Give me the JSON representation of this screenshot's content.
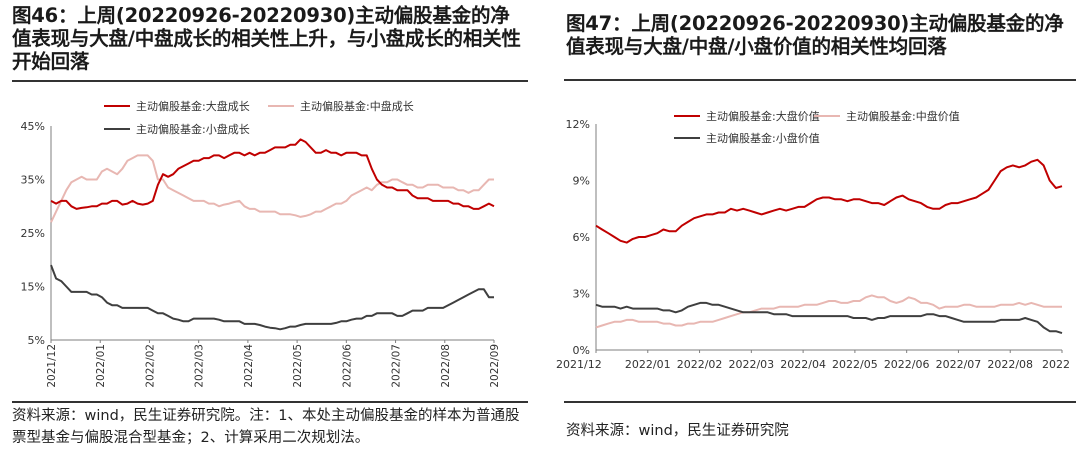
{
  "chart_data": [
    {
      "type": "line",
      "title": "图46：上周(20220926-20220930)主动偏股基金的净值表现与大盘/中盘成长的相关性上升，与小盘成长的相关性开始回落",
      "yticks": [
        "45%",
        "35%",
        "25%",
        "15%",
        "5%"
      ],
      "ylim": [
        5,
        45
      ],
      "xticks": [
        "2021/12",
        "2022/01",
        "2022/02",
        "2022/03",
        "2022/04",
        "2022/05",
        "2022/06",
        "2022/07",
        "2022/08",
        "2022/09"
      ],
      "series": [
        {
          "name": "主动偏股基金:大盘成长",
          "color": "#c00000",
          "values": [
            31,
            30.5,
            31,
            31,
            30,
            29.5,
            29.7,
            29.8,
            30,
            30,
            30.5,
            30.5,
            31,
            31,
            30.3,
            30.5,
            31,
            30.5,
            30.3,
            30.5,
            31,
            34,
            36,
            35.5,
            36,
            37,
            37.5,
            38,
            38.5,
            38.5,
            39,
            39,
            39.5,
            39.5,
            39,
            39.5,
            40,
            40,
            39.5,
            40,
            39.5,
            40,
            40,
            40.5,
            41,
            41,
            41,
            41.5,
            41.5,
            42.5,
            42,
            41,
            40,
            40,
            40.5,
            40,
            40,
            39.5,
            40,
            40,
            40,
            39.5,
            39.5,
            37,
            35,
            34,
            33.5,
            33.5,
            33,
            33,
            33,
            32,
            31.5,
            31.5,
            31.5,
            31,
            31,
            31,
            31,
            30.5,
            30.5,
            30,
            30,
            29.5,
            29.5,
            30,
            30.5,
            30
          ]
        },
        {
          "name": "主动偏股基金:中盘成长",
          "color": "#e8b7b2",
          "values": [
            27,
            29,
            31,
            33,
            34.5,
            35,
            35.5,
            35,
            35,
            35,
            36.5,
            37,
            36.5,
            36,
            37,
            38.5,
            39,
            39.5,
            39.5,
            39.5,
            38.5,
            35,
            35,
            33.5,
            33,
            32.5,
            32,
            31.5,
            31,
            31,
            31,
            30.5,
            30.5,
            30,
            30.3,
            30.5,
            30.8,
            31,
            30,
            29.5,
            29.5,
            29,
            29,
            29,
            29,
            28.5,
            28.5,
            28.5,
            28.3,
            28,
            28.2,
            28.5,
            29,
            29,
            29.5,
            30,
            30.5,
            30.5,
            31,
            32,
            32.5,
            33,
            33.5,
            33,
            34,
            34.5,
            34.5,
            35,
            35,
            34.5,
            34,
            34,
            33.5,
            33.5,
            34,
            34,
            34,
            33.5,
            33.5,
            33.5,
            33,
            33,
            32.5,
            33,
            33,
            34,
            35,
            35
          ]
        },
        {
          "name": "主动偏股基金:小盘成长",
          "color": "#3f3f3f",
          "values": [
            19,
            16.5,
            16,
            15,
            14,
            14,
            14,
            14,
            13.5,
            13.5,
            13,
            12,
            11.5,
            11.5,
            11,
            11,
            11,
            11,
            11,
            11,
            10.5,
            10,
            10,
            9.5,
            9,
            8.8,
            8.5,
            8.5,
            9,
            9,
            9,
            9,
            9,
            8.8,
            8.5,
            8.5,
            8.5,
            8.5,
            8,
            8,
            8,
            7.8,
            7.5,
            7.3,
            7.2,
            7,
            7.2,
            7.5,
            7.5,
            7.8,
            8,
            8,
            8,
            8,
            8,
            8,
            8.2,
            8.5,
            8.5,
            8.8,
            9,
            9,
            9.5,
            9.5,
            10,
            10,
            10,
            10,
            9.5,
            9.5,
            10,
            10.5,
            10.5,
            10.5,
            11,
            11,
            11,
            11,
            11.5,
            12,
            12.5,
            13,
            13.5,
            14,
            14.5,
            14.5,
            13,
            13
          ]
        }
      ],
      "source": "资料来源：wind，民生证券研究院。注：1、本处主动偏股基金的样本为普通股票型基金与偏股混合型基金；2、计算采用二次规划法。"
    },
    {
      "type": "line",
      "title": "图47：上周(20220926-20220930)主动偏股基金的净值表现与大盘/中盘/小盘价值的相关性均回落",
      "yticks": [
        "12%",
        "9%",
        "6%",
        "3%",
        "0%"
      ],
      "ylim": [
        0,
        12
      ],
      "xticks": [
        "2021/12",
        "2022/01",
        "2022/02",
        "2022/03",
        "2022/04",
        "2022/05",
        "2022/06",
        "2022/07",
        "2022/08",
        "2022"
      ],
      "series": [
        {
          "name": "主动偏股基金:大盘价值",
          "color": "#c00000",
          "values": [
            6.6,
            6.4,
            6.2,
            6.0,
            5.8,
            5.7,
            5.9,
            6.0,
            6.0,
            6.1,
            6.2,
            6.4,
            6.3,
            6.3,
            6.6,
            6.8,
            7.0,
            7.1,
            7.2,
            7.2,
            7.3,
            7.3,
            7.5,
            7.4,
            7.5,
            7.4,
            7.3,
            7.2,
            7.3,
            7.4,
            7.5,
            7.4,
            7.5,
            7.6,
            7.6,
            7.8,
            8.0,
            8.1,
            8.1,
            8.0,
            8.0,
            7.9,
            8.0,
            8.0,
            7.9,
            7.8,
            7.8,
            7.7,
            7.9,
            8.1,
            8.2,
            8.0,
            7.9,
            7.8,
            7.6,
            7.5,
            7.5,
            7.7,
            7.8,
            7.8,
            7.9,
            8.0,
            8.1,
            8.3,
            8.5,
            9.0,
            9.5,
            9.7,
            9.8,
            9.7,
            9.8,
            10.0,
            10.1,
            9.8,
            9.0,
            8.6,
            8.7
          ]
        },
        {
          "name": "主动偏股基金:中盘价值",
          "color": "#e8b7b2",
          "values": [
            1.2,
            1.3,
            1.4,
            1.5,
            1.5,
            1.6,
            1.6,
            1.5,
            1.5,
            1.5,
            1.5,
            1.4,
            1.4,
            1.3,
            1.3,
            1.4,
            1.4,
            1.5,
            1.5,
            1.5,
            1.6,
            1.7,
            1.8,
            1.9,
            2.0,
            2.0,
            2.1,
            2.2,
            2.2,
            2.2,
            2.3,
            2.3,
            2.3,
            2.3,
            2.4,
            2.4,
            2.4,
            2.5,
            2.6,
            2.6,
            2.5,
            2.5,
            2.6,
            2.6,
            2.8,
            2.9,
            2.8,
            2.8,
            2.6,
            2.5,
            2.6,
            2.8,
            2.7,
            2.5,
            2.5,
            2.4,
            2.2,
            2.3,
            2.3,
            2.3,
            2.4,
            2.4,
            2.3,
            2.3,
            2.3,
            2.3,
            2.4,
            2.4,
            2.4,
            2.5,
            2.4,
            2.5,
            2.4,
            2.3,
            2.3,
            2.3,
            2.3
          ]
        },
        {
          "name": "主动偏股基金:小盘价值",
          "color": "#3f3f3f",
          "values": [
            2.4,
            2.3,
            2.3,
            2.3,
            2.2,
            2.3,
            2.2,
            2.2,
            2.2,
            2.2,
            2.2,
            2.1,
            2.1,
            2.0,
            2.1,
            2.3,
            2.4,
            2.5,
            2.5,
            2.4,
            2.4,
            2.3,
            2.2,
            2.1,
            2.0,
            2.0,
            2.0,
            2.0,
            2.0,
            1.9,
            1.9,
            1.9,
            1.8,
            1.8,
            1.8,
            1.8,
            1.8,
            1.8,
            1.8,
            1.8,
            1.8,
            1.8,
            1.7,
            1.7,
            1.7,
            1.6,
            1.7,
            1.7,
            1.8,
            1.8,
            1.8,
            1.8,
            1.8,
            1.8,
            1.9,
            1.9,
            1.8,
            1.8,
            1.7,
            1.6,
            1.5,
            1.5,
            1.5,
            1.5,
            1.5,
            1.5,
            1.6,
            1.6,
            1.6,
            1.6,
            1.7,
            1.6,
            1.5,
            1.2,
            1.0,
            1.0,
            0.9
          ]
        }
      ],
      "source": "资料来源：wind，民生证券研究院"
    }
  ]
}
